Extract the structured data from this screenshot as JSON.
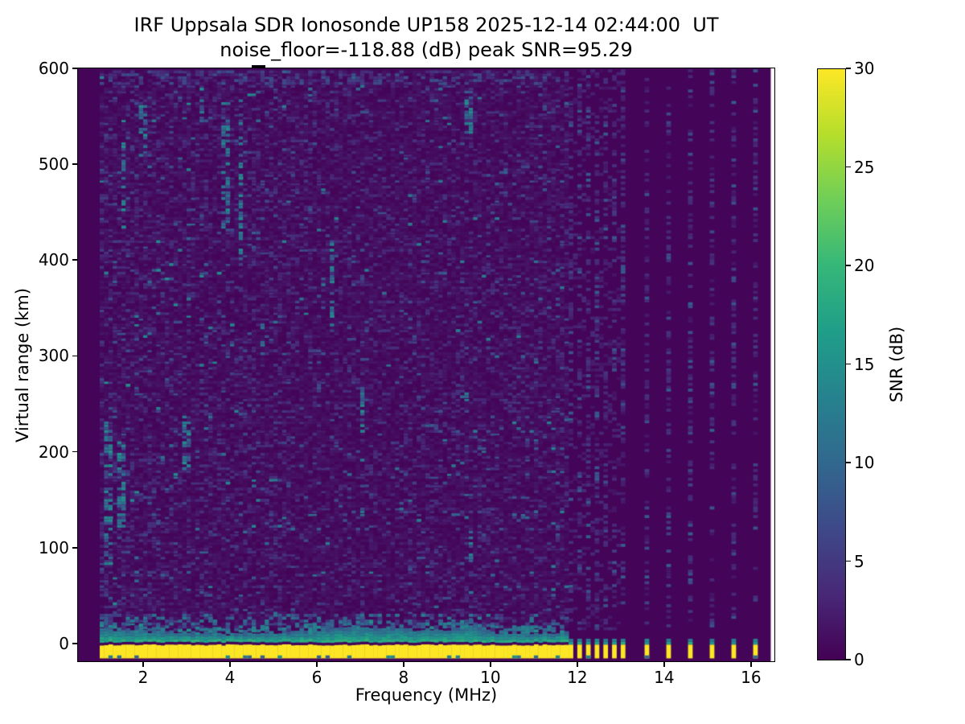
{
  "figure": {
    "title_line1": "IRF Uppsala SDR Ionosonde UP158 2025-12-14 02:44:00  UT",
    "title_line2": "noise_floor=-118.88 (dB) peak SNR=95.29",
    "xlabel": "Frequency (MHz)",
    "ylabel": "Virtual range (km)"
  },
  "chart_data": {
    "type": "heatmap",
    "title": "IRF Uppsala SDR Ionosonde UP158 2025-12-14 02:44:00  UT",
    "subtitle": "noise_floor=-118.88 (dB) peak SNR=95.29",
    "station": "UP158",
    "datetime_ut": "2025-12-14 02:44:00",
    "noise_floor_db": -118.88,
    "peak_snr_db": 95.29,
    "xlabel": "Frequency (MHz)",
    "ylabel": "Virtual range (km)",
    "xlim": [
      0.5,
      16.54
    ],
    "ylim": [
      -18.5,
      600
    ],
    "x_ticks": [
      2,
      4,
      6,
      8,
      10,
      12,
      14,
      16
    ],
    "y_ticks": [
      0,
      100,
      200,
      300,
      400,
      500,
      600
    ],
    "grid": false,
    "colormap": "viridis",
    "colorbar": {
      "label": "SNR (dB)",
      "ticks": [
        0,
        5,
        10,
        15,
        20,
        25,
        30
      ],
      "vmin": 0,
      "vmax": 30
    },
    "content": {
      "sweep_start_mhz": 1.0,
      "sweep_continuous_end_mhz": 11.7,
      "continuous_step_mhz": 0.1,
      "discrete_freqs_mhz": [
        11.8,
        12.0,
        12.2,
        12.4,
        12.6,
        12.8,
        13.0,
        13.55,
        14.05,
        14.55,
        15.05,
        15.55,
        16.05
      ],
      "ghost_freqs_mhz": [
        11.9,
        12.1,
        12.3,
        12.5,
        12.7,
        12.9
      ],
      "ground_echo_km": [
        -15.5,
        -1
      ],
      "ground_echo_snr_db": 30,
      "echo_cap_km_typical": [
        -1,
        9
      ],
      "cap_bump_mhz": 9.5,
      "background_snr_db": 0.5,
      "noise_streaks": [
        {
          "f": 1.15,
          "v": [
            80,
            230
          ]
        },
        {
          "f": 1.45,
          "v": [
            120,
            210
          ]
        },
        {
          "f": 1.5,
          "v": [
            430,
            520
          ]
        },
        {
          "f": 1.95,
          "v": [
            500,
            560
          ]
        },
        {
          "f": 2.95,
          "v": [
            180,
            235
          ]
        },
        {
          "f": 3.3,
          "v": [
            540,
            578
          ]
        },
        {
          "f": 3.85,
          "v": [
            430,
            545
          ]
        },
        {
          "f": 4.2,
          "v": [
            400,
            570
          ]
        },
        {
          "f": 4.7,
          "v": [
            290,
            335
          ]
        },
        {
          "f": 6.3,
          "v": [
            330,
            420
          ]
        },
        {
          "f": 7.0,
          "v": [
            220,
            270
          ]
        },
        {
          "f": 9.45,
          "v": [
            530,
            578
          ]
        },
        {
          "f": 9.5,
          "v": [
            85,
            118
          ]
        }
      ]
    }
  },
  "colors": {
    "background": "#ffffff",
    "axes_color": "#000000",
    "text_color": "#000000",
    "viridis_stops": [
      "#440154",
      "#482878",
      "#3e4989",
      "#31688e",
      "#26828e",
      "#1f9e89",
      "#35b779",
      "#6ece58",
      "#b5de2b",
      "#fde725"
    ]
  }
}
